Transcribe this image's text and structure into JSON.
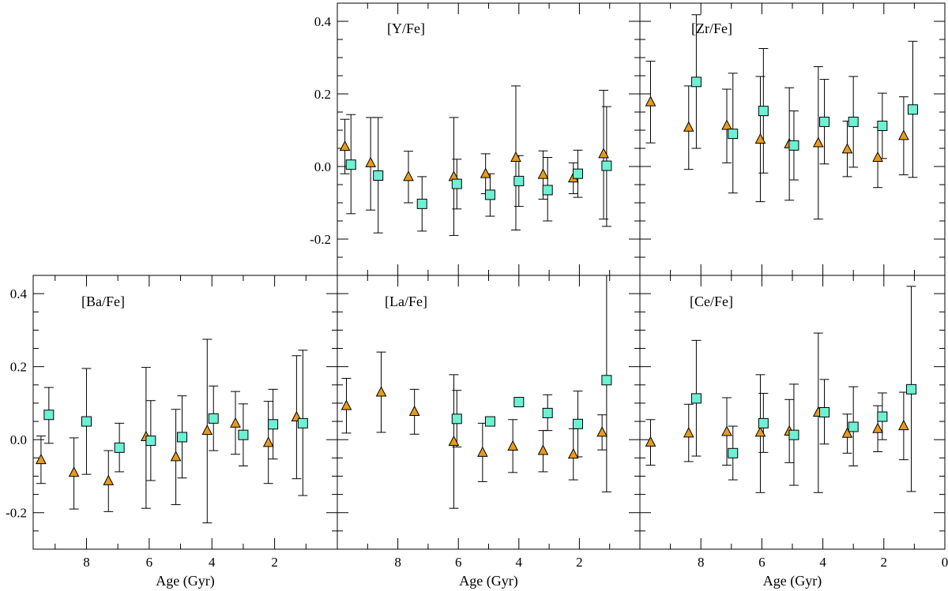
{
  "figure": {
    "colors": {
      "triangle": "#E89A1E",
      "square": "#6EF0D2",
      "axis": "#000000"
    }
  },
  "chart_data": [
    {
      "type": "scatter",
      "id": "y",
      "title": "[Y/Fe]",
      "xlabel": "",
      "ylabel": "",
      "xlim": [
        10,
        0
      ],
      "ylim": [
        -0.3,
        0.45
      ],
      "xticks": [
        8,
        6,
        4,
        2,
        0
      ],
      "yticks": [
        0.4,
        0.2,
        0.0,
        -0.2
      ],
      "ytick_labels": [
        "0.4",
        "0.2",
        "0.0",
        "-0.2"
      ],
      "series": [
        {
          "name": "triangles",
          "marker": "triangle",
          "points": [
            {
              "x": 9.75,
              "y": 0.055,
              "lo": -0.02,
              "hi": 0.13
            },
            {
              "x": 8.9,
              "y": 0.01,
              "lo": -0.12,
              "hi": 0.135
            },
            {
              "x": 7.65,
              "y": -0.028,
              "lo": -0.1,
              "hi": 0.042
            },
            {
              "x": 6.15,
              "y": -0.028,
              "lo": -0.19,
              "hi": 0.135
            },
            {
              "x": 5.1,
              "y": -0.02,
              "lo": -0.075,
              "hi": 0.035
            },
            {
              "x": 4.1,
              "y": 0.025,
              "lo": -0.175,
              "hi": 0.222
            },
            {
              "x": 3.2,
              "y": -0.022,
              "lo": -0.09,
              "hi": 0.043
            },
            {
              "x": 2.2,
              "y": -0.032,
              "lo": -0.075,
              "hi": 0.01
            },
            {
              "x": 1.2,
              "y": 0.035,
              "lo": -0.145,
              "hi": 0.21
            }
          ]
        },
        {
          "name": "squares",
          "marker": "square",
          "points": [
            {
              "x": 9.55,
              "y": 0.005,
              "lo": -0.13,
              "hi": 0.143
            },
            {
              "x": 8.65,
              "y": -0.025,
              "lo": -0.183,
              "hi": 0.135
            },
            {
              "x": 7.2,
              "y": -0.103,
              "lo": -0.178,
              "hi": -0.028
            },
            {
              "x": 6.05,
              "y": -0.048,
              "lo": -0.117,
              "hi": 0.02
            },
            {
              "x": 4.95,
              "y": -0.078,
              "lo": -0.137,
              "hi": -0.02
            },
            {
              "x": 4.0,
              "y": -0.04,
              "lo": -0.11,
              "hi": 0.03
            },
            {
              "x": 3.05,
              "y": -0.065,
              "lo": -0.15,
              "hi": 0.025
            },
            {
              "x": 2.05,
              "y": -0.02,
              "lo": -0.085,
              "hi": 0.045
            },
            {
              "x": 1.1,
              "y": 0.002,
              "lo": -0.165,
              "hi": 0.165
            }
          ]
        }
      ]
    },
    {
      "type": "scatter",
      "id": "zr",
      "title": "[Zr/Fe]",
      "xlabel": "",
      "ylabel": "",
      "xlim": [
        10,
        0
      ],
      "ylim": [
        -0.3,
        0.45
      ],
      "xticks": [
        8,
        6,
        4,
        2,
        0
      ],
      "yticks": [
        0.4,
        0.2,
        0.0,
        -0.2
      ],
      "ytick_labels": [
        "",
        "",
        "",
        ""
      ],
      "series": [
        {
          "name": "triangles",
          "marker": "triangle",
          "points": [
            {
              "x": 9.65,
              "y": 0.178,
              "lo": 0.065,
              "hi": 0.29
            },
            {
              "x": 8.4,
              "y": 0.108,
              "lo": -0.008,
              "hi": 0.222
            },
            {
              "x": 7.15,
              "y": 0.113,
              "lo": 0.01,
              "hi": 0.213
            },
            {
              "x": 6.05,
              "y": 0.075,
              "lo": -0.097,
              "hi": 0.248
            },
            {
              "x": 5.1,
              "y": 0.062,
              "lo": -0.093,
              "hi": 0.217
            },
            {
              "x": 4.15,
              "y": 0.065,
              "lo": -0.145,
              "hi": 0.275
            },
            {
              "x": 3.2,
              "y": 0.048,
              "lo": -0.028,
              "hi": 0.125
            },
            {
              "x": 2.2,
              "y": 0.025,
              "lo": -0.058,
              "hi": 0.108
            },
            {
              "x": 1.35,
              "y": 0.085,
              "lo": -0.023,
              "hi": 0.192
            }
          ]
        },
        {
          "name": "squares",
          "marker": "square",
          "points": [
            {
              "x": 8.15,
              "y": 0.233,
              "lo": 0.05,
              "hi": 0.418
            },
            {
              "x": 6.95,
              "y": 0.09,
              "lo": -0.073,
              "hi": 0.257
            },
            {
              "x": 5.95,
              "y": 0.153,
              "lo": -0.018,
              "hi": 0.325
            },
            {
              "x": 4.95,
              "y": 0.058,
              "lo": -0.037,
              "hi": 0.153
            },
            {
              "x": 3.95,
              "y": 0.123,
              "lo": 0.007,
              "hi": 0.24
            },
            {
              "x": 3.0,
              "y": 0.123,
              "lo": -0.002,
              "hi": 0.248
            },
            {
              "x": 2.05,
              "y": 0.112,
              "lo": 0.022,
              "hi": 0.202
            },
            {
              "x": 1.05,
              "y": 0.157,
              "lo": -0.03,
              "hi": 0.345
            }
          ]
        }
      ]
    },
    {
      "type": "scatter",
      "id": "ba",
      "title": "[Ba/Fe]",
      "xlabel": "Age (Gyr)",
      "ylabel": "",
      "xlim": [
        9.7,
        0
      ],
      "ylim": [
        -0.3,
        0.45
      ],
      "xticks": [
        8,
        6,
        4,
        2
      ],
      "yticks": [
        0.4,
        0.2,
        0.0,
        -0.2
      ],
      "ytick_labels": [
        "0.4",
        "0.2",
        "0.0",
        "-0.2"
      ],
      "series": [
        {
          "name": "triangles",
          "marker": "triangle",
          "points": [
            {
              "x": 9.45,
              "y": -0.055,
              "lo": -0.12,
              "hi": 0.01
            },
            {
              "x": 8.4,
              "y": -0.09,
              "lo": -0.19,
              "hi": 0.005
            },
            {
              "x": 7.3,
              "y": -0.113,
              "lo": -0.197,
              "hi": -0.03
            },
            {
              "x": 6.1,
              "y": 0.008,
              "lo": -0.188,
              "hi": 0.198
            },
            {
              "x": 5.15,
              "y": -0.047,
              "lo": -0.178,
              "hi": 0.083
            },
            {
              "x": 4.15,
              "y": 0.025,
              "lo": -0.228,
              "hi": 0.275
            },
            {
              "x": 3.25,
              "y": 0.045,
              "lo": -0.04,
              "hi": 0.132
            },
            {
              "x": 2.2,
              "y": -0.008,
              "lo": -0.12,
              "hi": 0.105
            },
            {
              "x": 1.3,
              "y": 0.062,
              "lo": -0.107,
              "hi": 0.23
            }
          ]
        },
        {
          "name": "squares",
          "marker": "square",
          "points": [
            {
              "x": 9.2,
              "y": 0.068,
              "lo": -0.01,
              "hi": 0.143
            },
            {
              "x": 8.0,
              "y": 0.05,
              "lo": -0.095,
              "hi": 0.195
            },
            {
              "x": 6.95,
              "y": -0.022,
              "lo": -0.088,
              "hi": 0.045
            },
            {
              "x": 5.95,
              "y": -0.003,
              "lo": -0.112,
              "hi": 0.107
            },
            {
              "x": 4.95,
              "y": 0.007,
              "lo": -0.105,
              "hi": 0.12
            },
            {
              "x": 3.95,
              "y": 0.058,
              "lo": -0.03,
              "hi": 0.147
            },
            {
              "x": 3.0,
              "y": 0.013,
              "lo": -0.072,
              "hi": 0.098
            },
            {
              "x": 2.05,
              "y": 0.042,
              "lo": -0.053,
              "hi": 0.138
            },
            {
              "x": 1.1,
              "y": 0.045,
              "lo": -0.153,
              "hi": 0.245
            }
          ]
        }
      ]
    },
    {
      "type": "scatter",
      "id": "la",
      "title": "[La/Fe]",
      "xlabel": "Age (Gyr)",
      "ylabel": "",
      "xlim": [
        10,
        0
      ],
      "ylim": [
        -0.3,
        0.45
      ],
      "xticks": [
        8,
        6,
        4,
        2
      ],
      "yticks": [
        0.4,
        0.2,
        0.0,
        -0.2
      ],
      "ytick_labels": [
        "",
        "",
        "",
        ""
      ],
      "series": [
        {
          "name": "triangles",
          "marker": "triangle",
          "points": [
            {
              "x": 9.7,
              "y": 0.093,
              "lo": 0.018,
              "hi": 0.168
            },
            {
              "x": 8.55,
              "y": 0.13,
              "lo": 0.02,
              "hi": 0.24
            },
            {
              "x": 7.45,
              "y": 0.077,
              "lo": 0.015,
              "hi": 0.138
            },
            {
              "x": 6.15,
              "y": -0.005,
              "lo": -0.188,
              "hi": 0.178
            },
            {
              "x": 5.2,
              "y": -0.035,
              "lo": -0.115,
              "hi": 0.045
            },
            {
              "x": 4.2,
              "y": -0.018,
              "lo": -0.09,
              "hi": 0.055
            },
            {
              "x": 3.2,
              "y": -0.03,
              "lo": -0.088,
              "hi": 0.025
            },
            {
              "x": 2.2,
              "y": -0.04,
              "lo": -0.11,
              "hi": 0.03
            },
            {
              "x": 1.25,
              "y": 0.02,
              "lo": -0.028,
              "hi": 0.068
            }
          ]
        },
        {
          "name": "squares",
          "marker": "square",
          "points": [
            {
              "x": 6.05,
              "y": 0.057,
              "lo": -0.02,
              "hi": 0.135
            },
            {
              "x": 4.95,
              "y": 0.05,
              "lo": 0.045,
              "hi": 0.055
            },
            {
              "x": 4.0,
              "y": 0.103,
              "lo": 0.09,
              "hi": 0.115
            },
            {
              "x": 3.05,
              "y": 0.073,
              "lo": 0.025,
              "hi": 0.123
            },
            {
              "x": 2.05,
              "y": 0.043,
              "lo": -0.047,
              "hi": 0.133
            },
            {
              "x": 1.1,
              "y": 0.163,
              "lo": -0.143,
              "hi": 0.45
            }
          ]
        }
      ]
    },
    {
      "type": "scatter",
      "id": "ce",
      "title": "[Ce/Fe]",
      "xlabel": "Age (Gyr)",
      "ylabel": "",
      "xlim": [
        10,
        0
      ],
      "ylim": [
        -0.3,
        0.45
      ],
      "xticks": [
        8,
        6,
        4,
        2,
        0
      ],
      "yticks": [
        0.4,
        0.2,
        0.0,
        -0.2
      ],
      "ytick_labels": [
        "",
        "",
        "",
        ""
      ],
      "series": [
        {
          "name": "triangles",
          "marker": "triangle",
          "points": [
            {
              "x": 9.65,
              "y": -0.007,
              "lo": -0.07,
              "hi": 0.055
            },
            {
              "x": 8.4,
              "y": 0.018,
              "lo": -0.06,
              "hi": 0.097
            },
            {
              "x": 7.15,
              "y": 0.022,
              "lo": -0.07,
              "hi": 0.115
            },
            {
              "x": 6.05,
              "y": 0.02,
              "lo": -0.145,
              "hi": 0.178
            },
            {
              "x": 5.1,
              "y": 0.023,
              "lo": -0.063,
              "hi": 0.11
            },
            {
              "x": 4.15,
              "y": 0.075,
              "lo": -0.145,
              "hi": 0.292
            },
            {
              "x": 3.2,
              "y": 0.017,
              "lo": -0.037,
              "hi": 0.07
            },
            {
              "x": 2.2,
              "y": 0.03,
              "lo": -0.033,
              "hi": 0.093
            },
            {
              "x": 1.35,
              "y": 0.038,
              "lo": -0.055,
              "hi": 0.13
            }
          ]
        },
        {
          "name": "squares",
          "marker": "square",
          "points": [
            {
              "x": 8.15,
              "y": 0.113,
              "lo": -0.045,
              "hi": 0.272
            },
            {
              "x": 6.95,
              "y": -0.037,
              "lo": -0.11,
              "hi": 0.037
            },
            {
              "x": 5.95,
              "y": 0.045,
              "lo": -0.035,
              "hi": 0.127
            },
            {
              "x": 4.95,
              "y": 0.013,
              "lo": -0.125,
              "hi": 0.152
            },
            {
              "x": 3.95,
              "y": 0.075,
              "lo": -0.012,
              "hi": 0.165
            },
            {
              "x": 3.0,
              "y": 0.035,
              "lo": -0.072,
              "hi": 0.145
            },
            {
              "x": 2.05,
              "y": 0.063,
              "lo": 0.0,
              "hi": 0.128
            },
            {
              "x": 1.1,
              "y": 0.138,
              "lo": -0.142,
              "hi": 0.42
            }
          ]
        }
      ]
    }
  ]
}
